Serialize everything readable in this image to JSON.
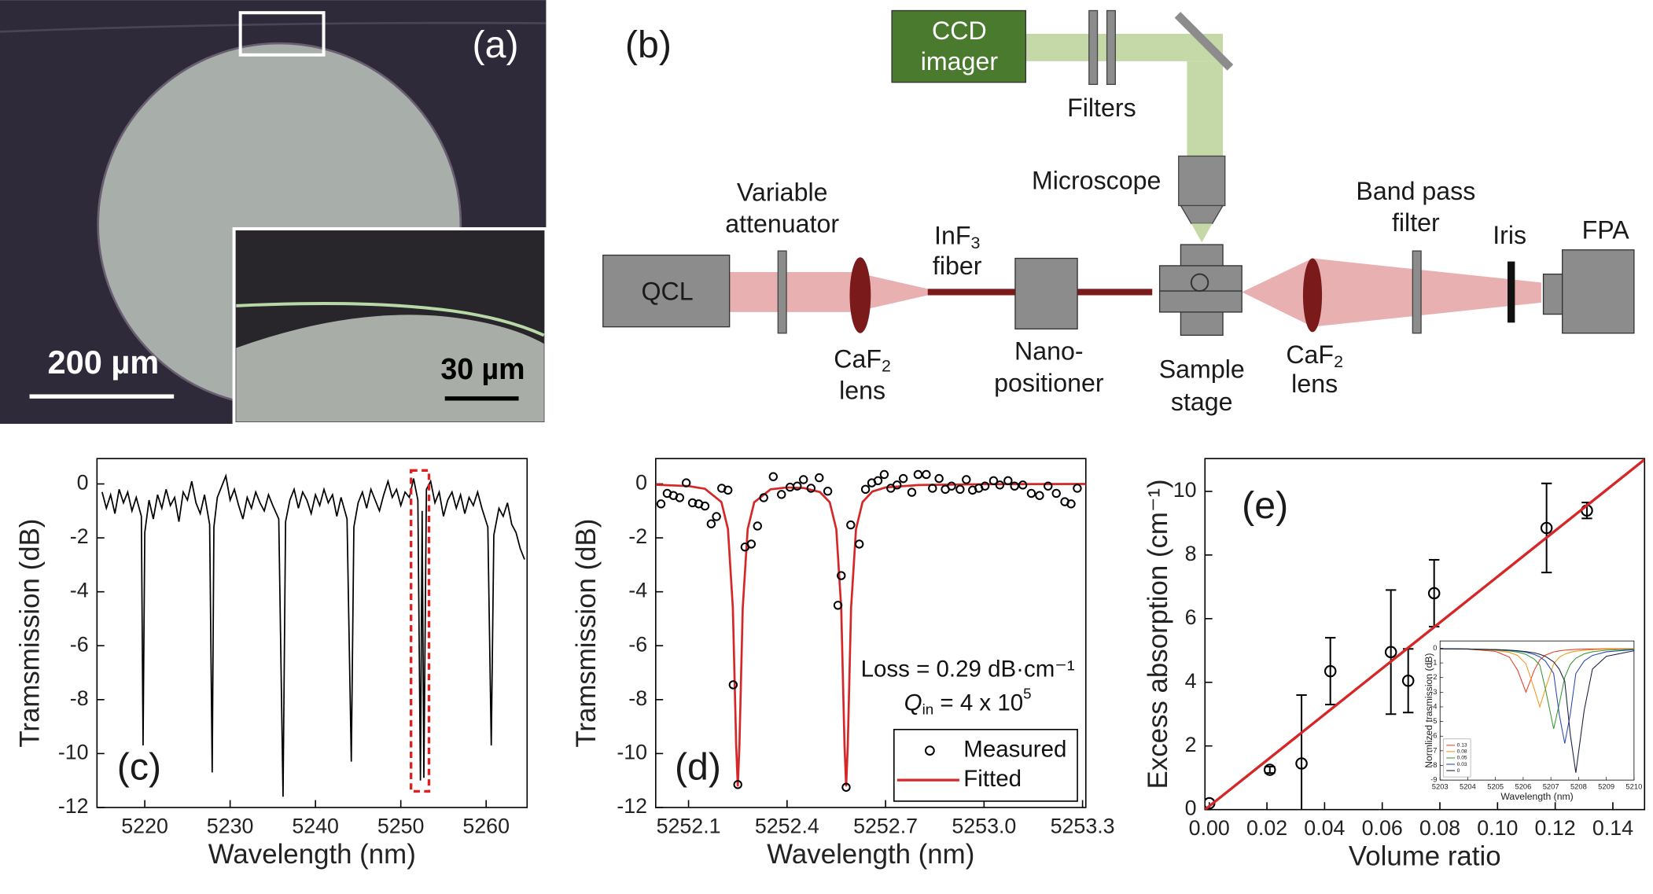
{
  "panel_a": {
    "label": "(a)",
    "scale_bar": "200 µm",
    "inset_scale_bar": "30 µm"
  },
  "panel_b": {
    "label": "(b)",
    "ccd": [
      "CCD",
      "imager"
    ],
    "filters": "Filters",
    "microscope": "Microscope",
    "band_pass": [
      "Band pass",
      "filter"
    ],
    "variable_attenuator": [
      "Variable",
      "attenuator"
    ],
    "fiber": {
      "text": "InF",
      "sub": "3",
      "line2": "fiber"
    },
    "qcl": "QCL",
    "lens1": {
      "text": "CaF",
      "sub": "2",
      "line2": "lens"
    },
    "nano_positioner": [
      "Nano-",
      "positioner"
    ],
    "sample_stage": [
      "Sample",
      "stage"
    ],
    "lens2": {
      "text": "CaF",
      "sub": "2",
      "line2": "lens"
    },
    "iris": "Iris",
    "fpa": "FPA"
  },
  "chart_data": [
    {
      "type": "line",
      "label": "(c)",
      "x_label": "Wavelength (nm)",
      "y_label": "Tramsmission (dB)",
      "xlim": [
        5214.4,
        5264.8
      ],
      "ylim": [
        -12,
        0.94
      ],
      "xticks": [
        5220,
        5230,
        5240,
        5250,
        5260
      ],
      "yticks": [
        0,
        -2,
        -4,
        -6,
        -8,
        -10,
        -12
      ],
      "color": "#000000",
      "x": [
        5215,
        5215.5,
        5216,
        5216.5,
        5217,
        5217.5,
        5218,
        5218.5,
        5219,
        5219.6,
        5219.8,
        5220.0,
        5220.5,
        5221,
        5221.5,
        5222,
        5222.5,
        5223,
        5223.5,
        5224,
        5224.5,
        5225,
        5225.5,
        5226,
        5226.5,
        5227,
        5227.6,
        5227.9,
        5228.1,
        5228.5,
        5229,
        5229.5,
        5230,
        5230.5,
        5231,
        5231.5,
        5232,
        5232.5,
        5233,
        5233.5,
        5234,
        5234.5,
        5235,
        5235.7,
        5236.2,
        5236.5,
        5237,
        5237.5,
        5238,
        5238.5,
        5239,
        5239.5,
        5240,
        5240.5,
        5241,
        5241.5,
        5242,
        5242.5,
        5243,
        5243.7,
        5244.2,
        5244.5,
        5245,
        5245.5,
        5246,
        5246.5,
        5247,
        5247.5,
        5248,
        5248.5,
        5249,
        5249.5,
        5250,
        5250.5,
        5251,
        5251.5,
        5252,
        5252.3,
        5252.5,
        5252.7,
        5253,
        5253.5,
        5254,
        5254.5,
        5255,
        5255.5,
        5256,
        5256.5,
        5257,
        5257.5,
        5258,
        5258.5,
        5259,
        5259.5,
        5260.2,
        5260.6,
        5260.9,
        5261.5,
        5262,
        5262.5,
        5263,
        5263.5,
        5264,
        5264.5
      ],
      "values": [
        -0.3,
        -0.9,
        -0.4,
        -1.1,
        -0.2,
        -0.7,
        -0.3,
        -1.0,
        -0.5,
        -1.2,
        -9.7,
        -1.8,
        -0.6,
        -1.3,
        -0.4,
        -0.9,
        -0.2,
        -0.8,
        -0.5,
        -1.4,
        -0.3,
        -0.6,
        0.1,
        -0.7,
        -1.1,
        -0.4,
        -1.5,
        -10.7,
        -1.6,
        -0.5,
        -0.1,
        0.3,
        -0.6,
        -0.2,
        -0.8,
        -1.3,
        -0.5,
        -0.9,
        -0.3,
        -0.7,
        -1.0,
        -0.4,
        -0.8,
        -1.3,
        -11.6,
        -1.4,
        -0.6,
        -0.2,
        -0.9,
        -0.3,
        -0.6,
        -1.1,
        -0.4,
        -0.8,
        -0.2,
        -0.7,
        -0.4,
        -1.2,
        -0.5,
        -1.3,
        -10.3,
        -1.6,
        -0.7,
        -0.3,
        -0.9,
        -0.2,
        -0.6,
        -1.0,
        -0.4,
        0.1,
        -0.5,
        -0.2,
        -0.8,
        -0.3,
        -0.5,
        0.2,
        -0.6,
        -11.0,
        -1.0,
        -10.9,
        -0.2,
        0.1,
        -0.7,
        -0.3,
        -1.2,
        -0.6,
        -0.3,
        -0.9,
        -0.4,
        -1.1,
        -0.5,
        -0.8,
        -0.3,
        -0.9,
        -1.6,
        -9.7,
        -1.9,
        -0.9,
        -1.2,
        -0.7,
        -1.5,
        -1.8,
        -2.4,
        -2.8
      ],
      "highlight": {
        "xlim": [
          5251.2,
          5253.3
        ],
        "ylim": [
          -11.4,
          0.5
        ],
        "color": "#e02020"
      }
    },
    {
      "type": "line",
      "label": "(d)",
      "x_label": "Wavelength (nm)",
      "y_label": "Tramsmission (dB)",
      "xlim": [
        5252.0,
        5253.31
      ],
      "ylim": [
        -12,
        0.94
      ],
      "xticks": [
        5252.1,
        5252.4,
        5252.7,
        {
          "value": 5253,
          "label": "5253.0"
        },
        5253.3
      ],
      "yticks": [
        0,
        -2,
        -4,
        -6,
        -8,
        -10,
        -12
      ],
      "legend": "lower right",
      "loss_text": "Loss = 0.29 dB·cm⁻¹",
      "q_text": {
        "symbol": "Q",
        "sub": "in",
        "rest": " = 4 x 10",
        "sup": "5"
      },
      "series": [
        {
          "name": "Measured",
          "color": "#000000",
          "marker": "circle",
          "x": [
            5252.016,
            5252.035,
            5252.054,
            5252.073,
            5252.093,
            5252.112,
            5252.131,
            5252.15,
            5252.169,
            5252.185,
            5252.201,
            5252.22,
            5252.236,
            5252.25,
            5252.272,
            5252.291,
            5252.31,
            5252.329,
            5252.358,
            5252.383,
            5252.409,
            5252.431,
            5252.45,
            5252.473,
            5252.498,
            5252.524,
            5252.555,
            5252.565,
            5252.58,
            5252.594,
            5252.62,
            5252.639,
            5252.658,
            5252.677,
            5252.696,
            5252.716,
            5252.735,
            5252.754,
            5252.78,
            5252.799,
            5252.824,
            5252.843,
            5252.863,
            5252.882,
            5252.901,
            5252.927,
            5252.946,
            5252.965,
            5252.984,
            5253.003,
            5253.029,
            5253.048,
            5253.073,
            5253.093,
            5253.118,
            5253.144,
            5253.169,
            5253.195,
            5253.22,
            5253.246,
            5253.265,
            5253.284
          ],
          "values": [
            -0.74,
            -0.35,
            -0.43,
            -0.51,
            0.04,
            -0.7,
            -0.74,
            -0.82,
            -1.48,
            -1.21,
            -0.16,
            -0.23,
            -7.45,
            -11.15,
            -2.34,
            -2.23,
            -1.56,
            -0.51,
            0.27,
            -0.39,
            -0.12,
            -0.08,
            0.16,
            -0.16,
            0.23,
            -0.27,
            -4.5,
            -3.4,
            -11.25,
            -1.52,
            -2.23,
            -0.2,
            0.04,
            0.12,
            0.35,
            -0.16,
            -0.04,
            0.2,
            -0.31,
            0.35,
            0.35,
            -0.16,
            0.2,
            -0.2,
            -0.08,
            -0.2,
            0.16,
            -0.23,
            -0.16,
            -0.08,
            0.12,
            -0.04,
            0.12,
            -0.08,
            -0.04,
            -0.35,
            -0.43,
            -0.08,
            -0.35,
            -0.66,
            -0.74,
            -0.16
          ]
        },
        {
          "name": "Fitted",
          "color": "#d62728",
          "x": [
            5252.0,
            5252.1,
            5252.15,
            5252.2,
            5252.22,
            5252.235,
            5252.245,
            5252.25,
            5252.255,
            5252.265,
            5252.28,
            5252.3,
            5252.35,
            5252.4,
            5252.45,
            5252.5,
            5252.53,
            5252.55,
            5252.565,
            5252.575,
            5252.58,
            5252.585,
            5252.595,
            5252.61,
            5252.63,
            5252.66,
            5252.7,
            5252.8,
            5253.0,
            5253.31
          ],
          "values": [
            -0.03,
            -0.08,
            -0.18,
            -0.67,
            -1.67,
            -4.61,
            -9.68,
            -11.22,
            -9.68,
            -4.61,
            -1.68,
            -0.68,
            -0.2,
            -0.13,
            -0.15,
            -0.3,
            -0.68,
            -1.68,
            -4.61,
            -9.68,
            -11.22,
            -9.68,
            -4.61,
            -1.68,
            -0.67,
            -0.28,
            -0.13,
            -0.04,
            -0.01,
            0
          ]
        }
      ]
    },
    {
      "type": "scatter",
      "label": "(e)",
      "x_label": "Volume ratio",
      "y_label": "Excess absorption (cm⁻¹)",
      "xlim": [
        -0.0015,
        0.151
      ],
      "ylim": [
        0,
        11.03
      ],
      "xticks": [
        {
          "value": 0,
          "label": "0.00"
        },
        {
          "value": 0.02,
          "label": "0.02"
        },
        {
          "value": 0.04,
          "label": "0.04"
        },
        {
          "value": 0.06,
          "label": "0.06"
        },
        {
          "value": 0.08,
          "label": "0.08"
        },
        {
          "value": 0.1,
          "label": "0.10"
        },
        {
          "value": 0.12,
          "label": "0.12"
        },
        {
          "value": 0.14,
          "label": "0.14"
        }
      ],
      "yticks": [
        0,
        2,
        4,
        6,
        8,
        10
      ],
      "color": "#000000",
      "x": [
        0,
        0.021,
        0.032,
        0.042,
        0.063,
        0.069,
        0.078,
        0.117,
        0.131
      ],
      "values": [
        0.2,
        1.25,
        1.45,
        4.35,
        4.95,
        4.05,
        6.8,
        8.85,
        9.4
      ],
      "errors": [
        0,
        0.1,
        2.15,
        1.05,
        1.95,
        1.0,
        1.05,
        1.4,
        0.25
      ],
      "fit": {
        "color": "#d62728",
        "x": [
          -0.0015,
          0.151
        ],
        "values": [
          0,
          11.0
        ]
      }
    },
    {
      "type": "line",
      "x_label": "Wavelength (nm)",
      "y_label": "Normlized trasmission (dB)",
      "xlim": [
        5203,
        5210
      ],
      "ylim": [
        -9,
        0.5
      ],
      "xticks": [
        5203,
        5204,
        5205,
        5206,
        5207,
        5208,
        5209,
        5210
      ],
      "yticks": [
        0,
        -1,
        -2,
        -3,
        -4,
        -5,
        -6,
        -7,
        -8,
        -9
      ],
      "legend": "lower left",
      "x": [
        5203,
        5204,
        5205,
        5205.5,
        5205.8,
        5206.1,
        5206.4,
        5206.6,
        5206.8,
        5207.1,
        5207.3,
        5207.5,
        5207.7,
        5207.9,
        5208.2,
        5208.5,
        5209,
        5210
      ],
      "series": [
        {
          "name": "0.13",
          "color": "#e8402a",
          "values": [
            -0.03,
            -0.06,
            -0.21,
            -0.6,
            -1.5,
            -3,
            -1.5,
            -0.79,
            -0.47,
            -0.25,
            -0.18,
            -0.13,
            -0.1,
            -0.08,
            -0.06,
            -0.05,
            -0.03,
            -0.02
          ]
        },
        {
          "name": "0.08",
          "color": "#f09a20",
          "values": [
            -0.03,
            -0.05,
            -0.14,
            -0.28,
            -0.49,
            -1.06,
            -2.77,
            -4,
            -2.77,
            -1.06,
            -0.62,
            -0.4,
            -0.28,
            -0.2,
            -0.14,
            -0.1,
            -0.06,
            -0.03
          ]
        },
        {
          "name": "0.05",
          "color": "#3a9a3a",
          "values": [
            -0.03,
            -0.05,
            -0.11,
            -0.18,
            -0.26,
            -0.42,
            -0.74,
            -1.15,
            -2.75,
            -5.5,
            -3.81,
            -1.98,
            -1.1,
            -0.68,
            -0.38,
            -0.24,
            -0.13,
            -0.06
          ]
        },
        {
          "name": "0.03",
          "color": "#2a4ab0",
          "values": [
            -0.03,
            -0.05,
            -0.09,
            -0.14,
            -0.19,
            -0.27,
            -0.42,
            -0.59,
            -0.87,
            -1.72,
            -4.5,
            -6.5,
            -4.5,
            -1.72,
            -0.87,
            -0.49,
            -0.24,
            -0.09
          ]
        },
        {
          "name": "0",
          "color": "#1a2040",
          "values": [
            -0.03,
            -0.05,
            -0.09,
            -0.13,
            -0.17,
            -0.23,
            -0.31,
            -0.41,
            -0.55,
            -0.93,
            -1.42,
            -2.25,
            -5.88,
            -8.5,
            -4.25,
            -1.42,
            -0.55,
            -0.17
          ]
        }
      ]
    }
  ]
}
